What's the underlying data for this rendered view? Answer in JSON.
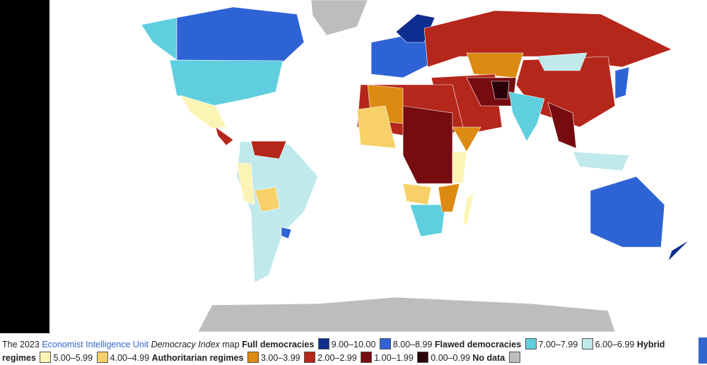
{
  "caption": {
    "prefix": "The 2023",
    "link": "Economist Intelligence Unit",
    "title": "Democracy Index",
    "suffix": "map",
    "legend": [
      {
        "group": "Full democracies",
        "items": [
          {
            "label": "9.00–10.00",
            "color": "#0e2d8e"
          },
          {
            "label": "8.00–8.99",
            "color": "#2e63d6"
          }
        ]
      },
      {
        "group": "Flawed democracies",
        "items": [
          {
            "label": "7.00–7.99",
            "color": "#5fcfdf"
          },
          {
            "label": "6.00–6.99",
            "color": "#c0e9ec"
          }
        ]
      },
      {
        "group": "Hybrid regimes",
        "items": [
          {
            "label": "5.00–5.99",
            "color": "#fbf4b4"
          },
          {
            "label": "4.00–4.99",
            "color": "#f8d068"
          }
        ]
      },
      {
        "group": "Authoritarian regimes",
        "items": [
          {
            "label": "3.00–3.99",
            "color": "#dc8a12"
          },
          {
            "label": "2.00–2.99",
            "color": "#b5261b"
          },
          {
            "label": "1.00–1.99",
            "color": "#760b10"
          },
          {
            "label": "0.00–0.99",
            "color": "#2b0009"
          }
        ]
      },
      {
        "group": "No data",
        "color": "#bdbdbd"
      }
    ]
  }
}
